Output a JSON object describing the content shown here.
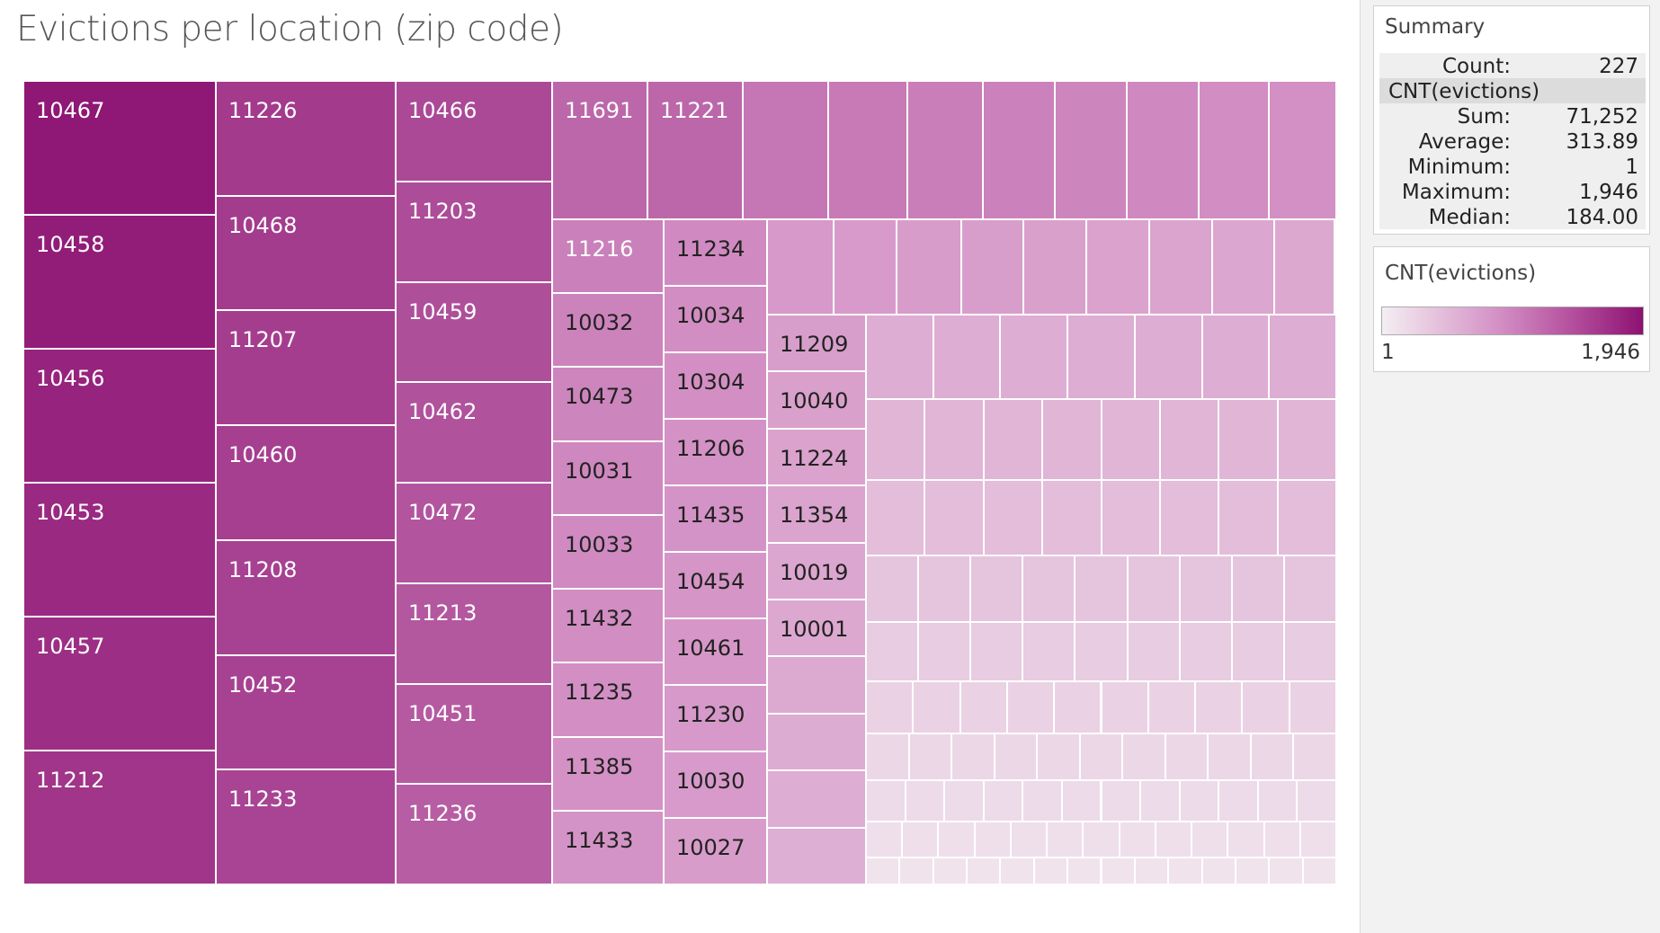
{
  "title": "Evictions per location (zip code)",
  "chart_data": {
    "type": "treemap",
    "title": "Evictions per location (zip code)",
    "measure": "CNT(evictions)",
    "labeled_tiles": [
      "10467",
      "10458",
      "10456",
      "10453",
      "10457",
      "11212",
      "11226",
      "10468",
      "11207",
      "10460",
      "11208",
      "10452",
      "11233",
      "10466",
      "11203",
      "10459",
      "10462",
      "10472",
      "11213",
      "10451",
      "11236",
      "11691",
      "11221",
      "11216",
      "10032",
      "10473",
      "10031",
      "10033",
      "11432",
      "11235",
      "11385",
      "11433",
      "11234",
      "10034",
      "10304",
      "11206",
      "11435",
      "10454",
      "10461",
      "11230",
      "10030",
      "10027",
      "11209",
      "10040",
      "11224",
      "11354",
      "10019",
      "10001"
    ],
    "tile_count": 227,
    "color_scale": {
      "min": 1,
      "max": 1946,
      "colors": [
        "#f4eef2",
        "#d38fc4",
        "#8c1272"
      ]
    }
  },
  "summary": {
    "title": "Summary",
    "count_label": "Count:",
    "count_value": "227",
    "measure_label": "CNT(evictions)",
    "rows": [
      {
        "label": "Sum:",
        "value": "71,252"
      },
      {
        "label": "Average:",
        "value": "313.89"
      },
      {
        "label": "Minimum:",
        "value": "1"
      },
      {
        "label": "Maximum:",
        "value": "1,946"
      },
      {
        "label": "Median:",
        "value": "184.00"
      }
    ]
  },
  "legend": {
    "title": "CNT(evictions)",
    "min_label": "1",
    "max_label": "1,946"
  }
}
